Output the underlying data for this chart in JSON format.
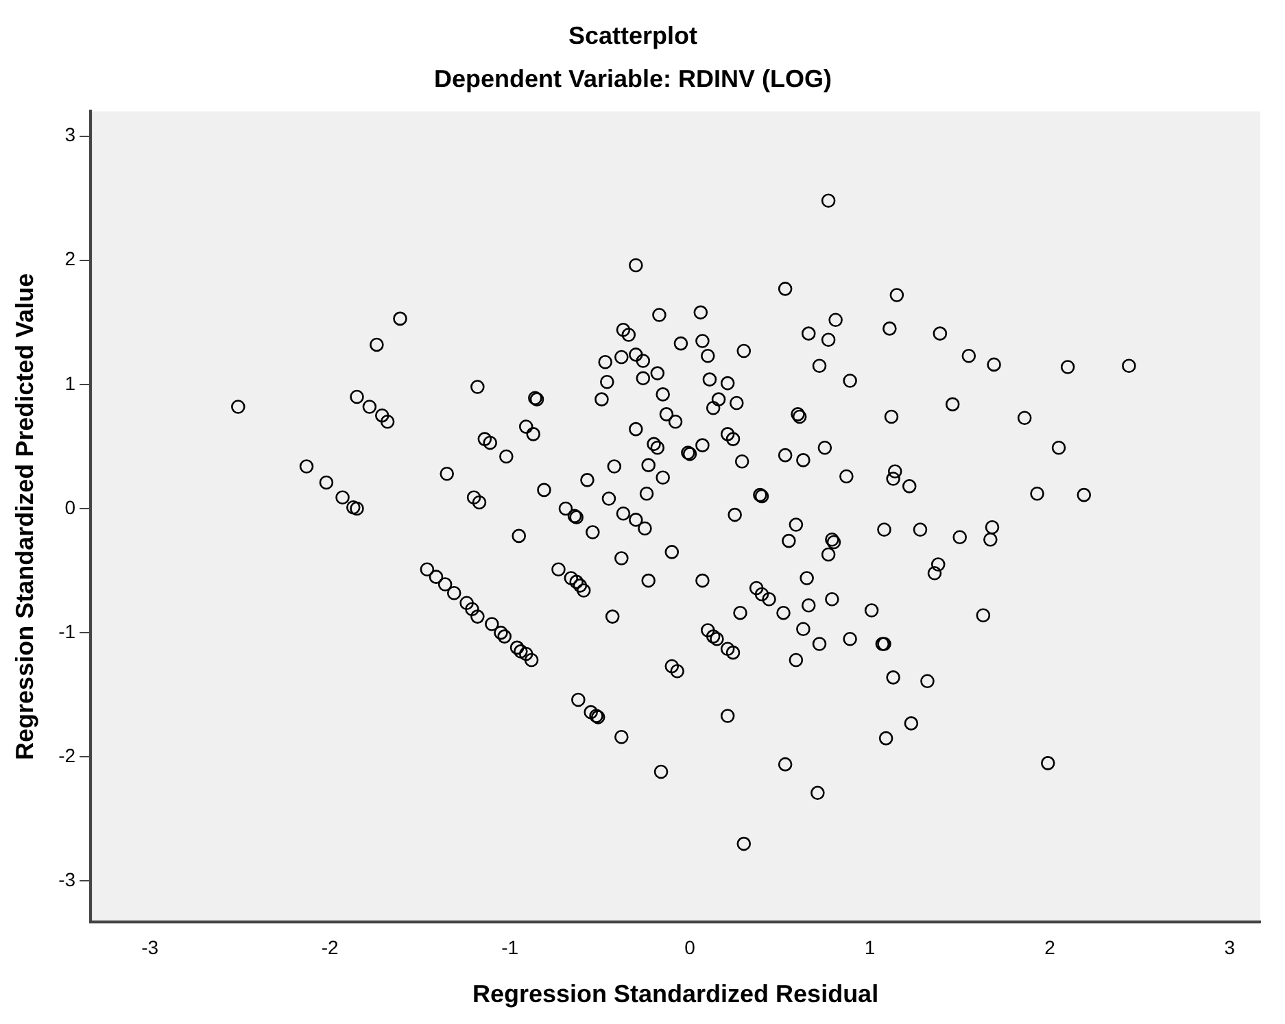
{
  "chart_data": {
    "type": "scatter",
    "title": "Scatterplot",
    "subtitle": "Dependent Variable: RDINV (LOG)",
    "xlabel": "Regression Standardized Residual",
    "ylabel": "Regression Standardized Predicted Value",
    "xlim": [
      -3.33,
      3.17
    ],
    "ylim": [
      -3.33,
      3.2
    ],
    "xticks": [
      -3,
      -2,
      -1,
      0,
      1,
      2,
      3
    ],
    "yticks": [
      -3,
      -2,
      -1,
      0,
      1,
      2,
      3
    ],
    "grid": false,
    "legend": false,
    "marker": "circle",
    "series": [
      {
        "color": "#000000",
        "x": [
          -2.51,
          -2.13,
          -2.02,
          -1.93,
          -1.87,
          -1.85,
          -1.61,
          -1.74,
          -1.85,
          -1.78,
          -1.71,
          -1.68,
          -1.35,
          -1.18,
          -1.2,
          -1.17,
          -1.14,
          0.77,
          -0.3,
          0.53,
          0.81,
          -0.17,
          0.06,
          -0.37,
          -0.34,
          -0.05,
          0.07,
          0.1,
          0.3,
          0.66,
          0.77,
          0.72,
          0.89,
          -0.47,
          -0.38,
          -0.3,
          -0.26,
          -0.18,
          -0.46,
          -0.26,
          -0.49,
          -0.15,
          0.11,
          0.21,
          0.16,
          0.26,
          0.13,
          -0.13,
          -0.08,
          0.6,
          0.61,
          -0.86,
          -0.85,
          -0.91,
          -0.87,
          -1.11,
          -1.02,
          -0.3,
          -0.2,
          -0.18,
          -0.01,
          0.0,
          0.07,
          0.21,
          0.24,
          0.53,
          0.63,
          0.75,
          0.87,
          0.29,
          0.39,
          0.4,
          -0.42,
          -0.23,
          -0.15,
          -0.24,
          -0.45,
          -0.57,
          -0.81,
          -0.69,
          -0.64,
          -0.63,
          -0.37,
          -0.3,
          -0.25,
          0.25,
          0.59,
          -0.54,
          1.15,
          1.11,
          1.39,
          1.55,
          1.69,
          2.1,
          2.44,
          1.12,
          1.46,
          1.86,
          2.05,
          1.14,
          1.13,
          1.22,
          1.93,
          2.19,
          1.08,
          1.28,
          1.5,
          1.68,
          1.67,
          1.38,
          1.36,
          1.01,
          1.63,
          1.07,
          1.08,
          1.13,
          1.32,
          1.23,
          1.09,
          1.99,
          0.55,
          0.79,
          0.8,
          0.77,
          -0.95,
          -0.38,
          -0.1,
          -0.23,
          0.07,
          0.37,
          0.4,
          0.44,
          0.28,
          0.52,
          0.65,
          0.66,
          0.79,
          0.63,
          0.72,
          0.89,
          0.59,
          0.53,
          0.71,
          0.3,
          0.21,
          -0.16,
          -0.38,
          -0.62,
          -0.55,
          -0.52,
          -0.51,
          -0.1,
          -0.07,
          -0.43,
          0.1,
          0.13,
          0.15,
          0.21,
          0.24,
          -0.73,
          -0.66,
          -0.63,
          -0.61,
          -0.59,
          -1.46,
          -1.41,
          -1.36,
          -1.31,
          -1.24,
          -1.21,
          -1.18,
          -1.1,
          -1.05,
          -1.03,
          -0.96,
          -0.94,
          -0.91,
          -0.88
        ],
        "values": [
          0.82,
          0.34,
          0.21,
          0.09,
          0.01,
          0.0,
          1.53,
          1.32,
          0.9,
          0.82,
          0.75,
          0.7,
          0.28,
          0.98,
          0.09,
          0.05,
          0.56,
          2.48,
          1.96,
          1.77,
          1.52,
          1.56,
          1.58,
          1.44,
          1.4,
          1.33,
          1.35,
          1.23,
          1.27,
          1.41,
          1.36,
          1.15,
          1.03,
          1.18,
          1.22,
          1.24,
          1.19,
          1.09,
          1.02,
          1.05,
          0.88,
          0.92,
          1.04,
          1.01,
          0.88,
          0.85,
          0.81,
          0.76,
          0.7,
          0.76,
          0.74,
          0.89,
          0.88,
          0.66,
          0.6,
          0.53,
          0.42,
          0.64,
          0.52,
          0.49,
          0.45,
          0.44,
          0.51,
          0.6,
          0.56,
          0.43,
          0.39,
          0.49,
          0.26,
          0.38,
          0.11,
          0.1,
          0.34,
          0.35,
          0.25,
          0.12,
          0.08,
          0.23,
          0.15,
          0.0,
          -0.06,
          -0.07,
          -0.04,
          -0.09,
          -0.16,
          -0.05,
          -0.13,
          -0.19,
          1.72,
          1.45,
          1.41,
          1.23,
          1.16,
          1.14,
          1.15,
          0.74,
          0.84,
          0.73,
          0.49,
          0.3,
          0.24,
          0.18,
          0.12,
          0.11,
          -0.17,
          -0.17,
          -0.23,
          -0.15,
          -0.25,
          -0.45,
          -0.52,
          -0.82,
          -0.86,
          -1.09,
          -1.09,
          -1.36,
          -1.39,
          -1.73,
          -1.85,
          -2.05,
          -0.26,
          -0.25,
          -0.27,
          -0.37,
          -0.22,
          -0.4,
          -0.35,
          -0.58,
          -0.58,
          -0.64,
          -0.69,
          -0.73,
          -0.84,
          -0.84,
          -0.56,
          -0.78,
          -0.73,
          -0.97,
          -1.09,
          -1.05,
          -1.22,
          -2.06,
          -2.29,
          -2.7,
          -1.67,
          -2.12,
          -1.84,
          -1.54,
          -1.64,
          -1.67,
          -1.68,
          -1.27,
          -1.31,
          -0.87,
          -0.98,
          -1.03,
          -1.05,
          -1.13,
          -1.16,
          -0.49,
          -0.56,
          -0.59,
          -0.62,
          -0.66,
          -0.49,
          -0.55,
          -0.61,
          -0.68,
          -0.76,
          -0.81,
          -0.87,
          -0.93,
          -1.0,
          -1.03,
          -1.12,
          -1.15,
          -1.17,
          -1.22
        ]
      }
    ]
  }
}
